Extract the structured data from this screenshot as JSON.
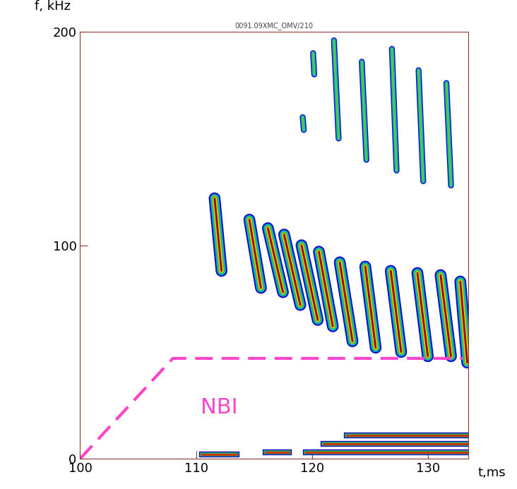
{
  "chart_data": {
    "type": "spectrogram",
    "title": "0091.09XMC_OMV/210",
    "x_label": "t,ms",
    "y_label": "f, kHz",
    "xlim": [
      100,
      133.5
    ],
    "ylim": [
      0,
      200
    ],
    "xticks": [
      100,
      110,
      120,
      130
    ],
    "yticks": [
      0,
      100,
      200
    ],
    "bursts": [
      {
        "t": [
          111.6,
          112.2
        ],
        "f": [
          122,
          88
        ]
      },
      {
        "t": [
          114.6,
          115.6
        ],
        "f": [
          112,
          80
        ]
      },
      {
        "t": [
          116.2,
          117.5
        ],
        "f": [
          108,
          78
        ]
      },
      {
        "t": [
          117.6,
          119.0
        ],
        "f": [
          105,
          72
        ]
      },
      {
        "t": [
          119.1,
          120.5
        ],
        "f": [
          100,
          65
        ]
      },
      {
        "t": [
          120.6,
          121.8
        ],
        "f": [
          97,
          62
        ]
      },
      {
        "t": [
          122.4,
          123.5
        ],
        "f": [
          92,
          55
        ]
      },
      {
        "t": [
          124.6,
          125.5
        ],
        "f": [
          90,
          52
        ]
      },
      {
        "t": [
          126.8,
          127.7
        ],
        "f": [
          88,
          50
        ]
      },
      {
        "t": [
          129.1,
          130.0
        ],
        "f": [
          87,
          48
        ]
      },
      {
        "t": [
          131.1,
          132.0
        ],
        "f": [
          86,
          48
        ]
      },
      {
        "t": [
          132.8,
          133.4
        ],
        "f": [
          83,
          45
        ]
      }
    ],
    "harmonic_bursts": [
      {
        "t": [
          119.2,
          119.3
        ],
        "f": [
          160,
          154
        ]
      },
      {
        "t": [
          120.1,
          120.2
        ],
        "f": [
          190,
          180
        ]
      },
      {
        "t": [
          121.9,
          122.3
        ],
        "f": [
          196,
          150
        ]
      },
      {
        "t": [
          124.3,
          124.7
        ],
        "f": [
          186,
          140
        ]
      },
      {
        "t": [
          126.9,
          127.3
        ],
        "f": [
          192,
          135
        ]
      },
      {
        "t": [
          129.2,
          129.6
        ],
        "f": [
          182,
          130
        ]
      },
      {
        "t": [
          131.6,
          132.0
        ],
        "f": [
          176,
          128
        ]
      }
    ],
    "low_frequency_bands": [
      {
        "t": [
          110.5,
          113.5
        ],
        "f": 2
      },
      {
        "t": [
          116.0,
          118.0
        ],
        "f": 3
      },
      {
        "t": [
          119.5,
          133.5
        ],
        "f": 3
      },
      {
        "t": [
          121.0,
          133.5
        ],
        "f": 7
      },
      {
        "t": [
          123.0,
          133.5
        ],
        "f": 11
      }
    ],
    "series": [
      {
        "label": "NBI",
        "label_at": [
          112,
          24
        ],
        "color": "#ff44cc",
        "line_style": "dashed",
        "x": [
          100,
          108,
          133
        ],
        "values": [
          0,
          47,
          47
        ]
      }
    ]
  }
}
